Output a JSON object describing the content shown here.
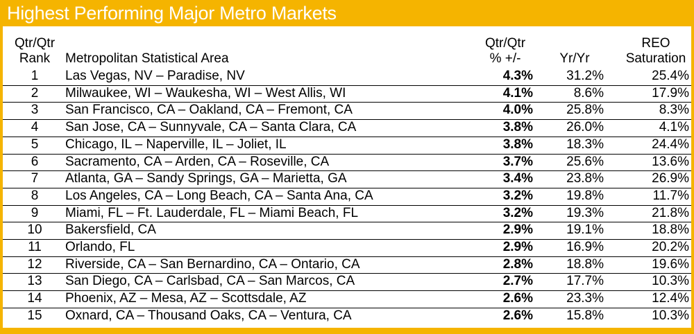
{
  "title": "Highest Performing Major Metro Markets",
  "table": {
    "headers": [
      [
        "Qtr/Qtr",
        "Rank"
      ],
      [
        "Metropolitan Statistical Area"
      ],
      [
        "Qtr/Qtr",
        "% +/-"
      ],
      [
        "Yr/Yr"
      ],
      [
        "REO",
        "Saturation"
      ]
    ],
    "rows": [
      [
        "1",
        "Las Vegas, NV – Paradise, NV",
        "4.3%",
        "31.2%",
        "25.4%"
      ],
      [
        "2",
        "Milwaukee, WI – Waukesha, WI – West Allis, WI",
        "4.1%",
        "8.6%",
        "17.9%"
      ],
      [
        "3",
        "San Francisco, CA – Oakland, CA – Fremont, CA",
        "4.0%",
        "25.8%",
        "8.3%"
      ],
      [
        "4",
        "San Jose, CA – Sunnyvale, CA – Santa Clara, CA",
        "3.8%",
        "26.0%",
        "4.1%"
      ],
      [
        "5",
        "Chicago, IL – Naperville, IL – Joliet, IL",
        "3.8%",
        "18.3%",
        "24.4%"
      ],
      [
        "6",
        "Sacramento, CA – Arden, CA – Roseville, CA",
        "3.7%",
        "25.6%",
        "13.6%"
      ],
      [
        "7",
        "Atlanta, GA – Sandy Springs, GA – Marietta, GA",
        "3.4%",
        "23.8%",
        "26.9%"
      ],
      [
        "8",
        "Los Angeles, CA – Long Beach, CA – Santa Ana, CA",
        "3.2%",
        "19.8%",
        "11.7%"
      ],
      [
        "9",
        "Miami, FL – Ft. Lauderdale, FL – Miami Beach, FL",
        "3.2%",
        "19.3%",
        "21.8%"
      ],
      [
        "10",
        "Bakersfield, CA",
        "2.9%",
        "19.1%",
        "18.8%"
      ],
      [
        "11",
        "Orlando, FL",
        "2.9%",
        "16.9%",
        "20.2%"
      ],
      [
        "12",
        "Riverside, CA – San Bernardino, CA – Ontario, CA",
        "2.8%",
        "18.8%",
        "19.6%"
      ],
      [
        "13",
        "San Diego, CA – Carlsbad, CA – San Marcos, CA",
        "2.7%",
        "17.7%",
        "10.3%"
      ],
      [
        "14",
        "Phoenix, AZ – Mesa, AZ – Scottsdale, AZ",
        "2.6%",
        "23.3%",
        "12.4%"
      ],
      [
        "15",
        "Oxnard, CA – Thousand Oaks, CA – Ventura, CA",
        "2.6%",
        "15.8%",
        "10.3%"
      ]
    ]
  }
}
